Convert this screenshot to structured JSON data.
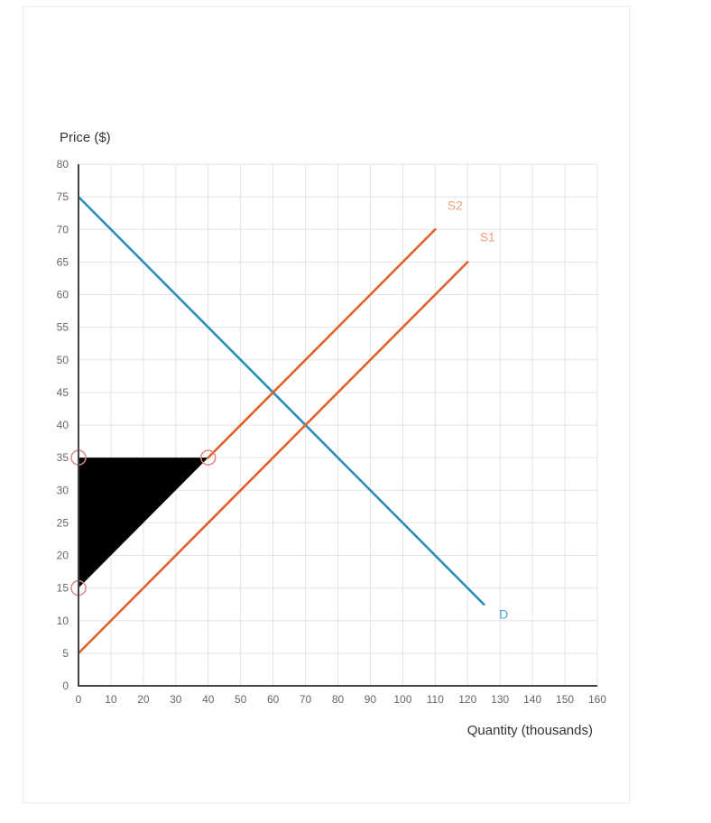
{
  "chart_data": {
    "type": "line",
    "ylabel": "Price ($)",
    "xlabel": "Quantity (thousands)",
    "xlim": [
      0,
      160
    ],
    "ylim": [
      0,
      80
    ],
    "x_ticks": [
      0,
      10,
      20,
      30,
      40,
      50,
      60,
      70,
      80,
      90,
      100,
      110,
      120,
      130,
      140,
      150,
      160
    ],
    "y_ticks": [
      0,
      5,
      10,
      15,
      20,
      25,
      30,
      35,
      40,
      45,
      50,
      55,
      60,
      65,
      70,
      75,
      80
    ],
    "grid": true,
    "series": [
      {
        "name": "D",
        "color": "#2a8fb8",
        "x": [
          0,
          125
        ],
        "y": [
          75,
          12.5
        ]
      },
      {
        "name": "S2",
        "color": "#e0622b",
        "x": [
          40,
          110
        ],
        "y": [
          35,
          70
        ]
      },
      {
        "name": "S1",
        "color": "#e0622b",
        "x": [
          0,
          120
        ],
        "y": [
          5,
          65
        ]
      }
    ],
    "label_colors": {
      "D": "#4aa6cf",
      "S2": "#f0a07a",
      "S1": "#f0a07a"
    },
    "shaded_region": {
      "color": "#000000",
      "x": [
        0,
        40,
        0
      ],
      "y": [
        15,
        35,
        35
      ]
    },
    "markers": {
      "color": "#d98a80",
      "points": [
        {
          "x": 0,
          "y": 35
        },
        {
          "x": 40,
          "y": 35
        },
        {
          "x": 0,
          "y": 15
        }
      ]
    }
  }
}
